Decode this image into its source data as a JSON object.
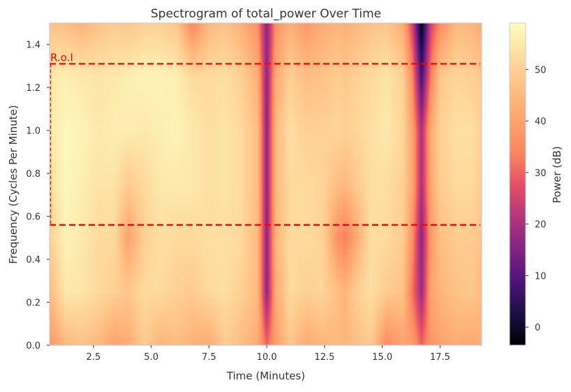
{
  "chart_data": {
    "type": "heatmap",
    "title": "Spectrogram of total_power Over Time",
    "xlabel": "Time (Minutes)",
    "ylabel": "Frequency (Cycles Per Minute)",
    "colorbar_label": "Power (dB)",
    "colormap": "magma",
    "xlim": [
      0.6,
      19.3
    ],
    "ylim": [
      0.0,
      1.5
    ],
    "clim": [
      -3.5,
      59
    ],
    "x_ticks": [
      2.5,
      5.0,
      7.5,
      10.0,
      12.5,
      15.0,
      17.5
    ],
    "x_tick_labels": [
      "2.5",
      "5.0",
      "7.5",
      "10.0",
      "12.5",
      "15.0",
      "17.5"
    ],
    "y_ticks": [
      0.0,
      0.2,
      0.4,
      0.6,
      0.8,
      1.0,
      1.2,
      1.4
    ],
    "y_tick_labels": [
      "0.0",
      "0.2",
      "0.4",
      "0.6",
      "0.8",
      "1.0",
      "1.2",
      "1.4"
    ],
    "colorbar_ticks": [
      0,
      10,
      20,
      30,
      40,
      50
    ],
    "colorbar_tick_labels": [
      "0",
      "10",
      "20",
      "30",
      "40",
      "50"
    ],
    "grid": false,
    "times": [
      0.6,
      1.3,
      2.0,
      2.7,
      3.4,
      4.0,
      4.7,
      5.4,
      6.1,
      6.8,
      7.5,
      8.2,
      8.9,
      9.6,
      10.0,
      10.4,
      11.0,
      11.7,
      12.4,
      13.1,
      13.4,
      13.8,
      14.5,
      15.2,
      15.9,
      16.3,
      16.7,
      17.1,
      17.5,
      18.2,
      18.9,
      19.3
    ],
    "frequencies": [
      0.0,
      0.25,
      0.5,
      0.75,
      1.0,
      1.25,
      1.5
    ],
    "power_db": [
      [
        38,
        45,
        47,
        45,
        40,
        42,
        49,
        44,
        46,
        43,
        42,
        49,
        46,
        42,
        30,
        39,
        48,
        42,
        44,
        45,
        44,
        46,
        49,
        35,
        40,
        39,
        30,
        37,
        40,
        42,
        41,
        43
      ],
      [
        45,
        55,
        54,
        52,
        50,
        48,
        52,
        52,
        50,
        49,
        52,
        53,
        50,
        45,
        16,
        42,
        52,
        50,
        51,
        46,
        44,
        49,
        53,
        49,
        47,
        32,
        18,
        40,
        44,
        47,
        48,
        45
      ],
      [
        50,
        57,
        55,
        52,
        52,
        40,
        50,
        53,
        52,
        52,
        53,
        53,
        52,
        45,
        16,
        44,
        52,
        52,
        51,
        36,
        33,
        40,
        53,
        52,
        49,
        36,
        16,
        38,
        46,
        49,
        49,
        47
      ],
      [
        53,
        58,
        56,
        54,
        54,
        49,
        52,
        55,
        55,
        55,
        53,
        54,
        52,
        46,
        16,
        45,
        52,
        52,
        51,
        46,
        45,
        48,
        53,
        53,
        50,
        41,
        20,
        41,
        49,
        52,
        52,
        49
      ],
      [
        55,
        58,
        57,
        55,
        56,
        56,
        55,
        56,
        57,
        55,
        53,
        54,
        52,
        46,
        16,
        45,
        53,
        50,
        50,
        51,
        50,
        51,
        53,
        55,
        51,
        40,
        20,
        42,
        50,
        53,
        53,
        50
      ],
      [
        55,
        56,
        55,
        54,
        55,
        56,
        57,
        57,
        56,
        52,
        52,
        53,
        50,
        43,
        16,
        42,
        50,
        46,
        47,
        49,
        48,
        50,
        52,
        54,
        50,
        35,
        8,
        33,
        48,
        51,
        50,
        48
      ],
      [
        47,
        46,
        44,
        47,
        49,
        48,
        50,
        50,
        48,
        34,
        45,
        47,
        43,
        36,
        16,
        36,
        43,
        38,
        42,
        44,
        43,
        44,
        47,
        48,
        42,
        25,
        -3,
        25,
        35,
        45,
        44,
        42
      ]
    ]
  },
  "annotations": {
    "roi_label": "R.o.I",
    "roi_lines": [
      1.31,
      0.56
    ]
  }
}
